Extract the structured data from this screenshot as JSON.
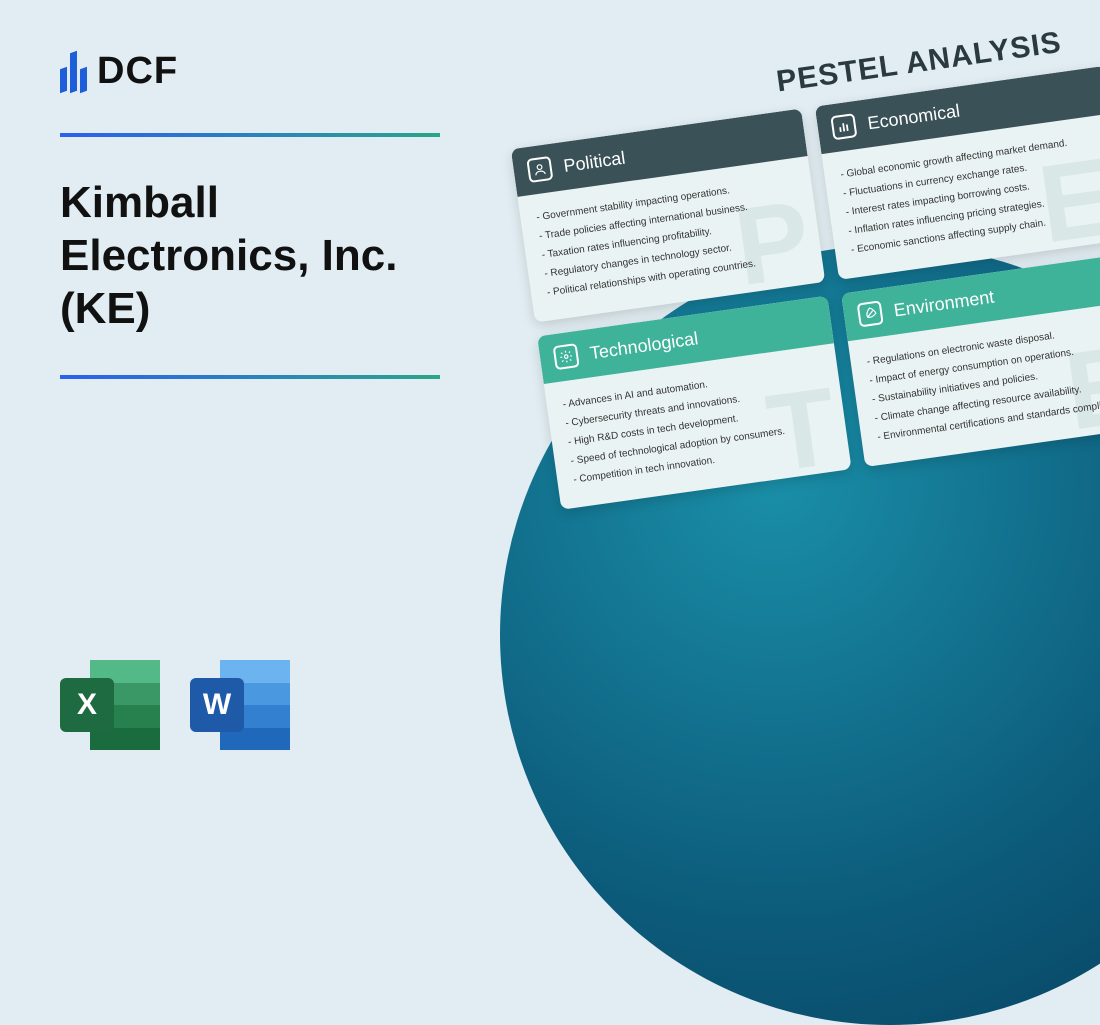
{
  "logo": {
    "text": "DCF"
  },
  "title": "Kimball Electronics, Inc. (KE)",
  "file_icons": {
    "excel": {
      "letter": "X",
      "badge_color": "#1e6b42"
    },
    "word": {
      "letter": "W",
      "badge_color": "#1f5aa8"
    }
  },
  "colors": {
    "background": "#e1edf2",
    "divider_start": "#2b5ff0",
    "divider_end": "#2aa58a",
    "circle_inner": "#1a8fa8",
    "circle_outer": "#083f5c",
    "header_dark": "#3a5257",
    "header_teal": "#3fb39a"
  },
  "pestel": {
    "title": "PESTEL ANALYSIS",
    "cards": [
      {
        "label": "Political",
        "watermark": "P",
        "header_style": "hdr-dark",
        "icon": "person",
        "items": [
          "Government stability impacting operations.",
          "Trade policies affecting international business.",
          "Taxation rates influencing profitability.",
          "Regulatory changes in technology sector.",
          "Political relationships with operating countries."
        ]
      },
      {
        "label": "Economical",
        "watermark": "E",
        "header_style": "hdr-dark",
        "icon": "bars",
        "items": [
          "Global economic growth affecting market demand.",
          "Fluctuations in currency exchange rates.",
          "Interest rates impacting borrowing costs.",
          "Inflation rates influencing pricing strategies.",
          "Economic sanctions affecting supply chain."
        ]
      },
      {
        "label": "Technological",
        "watermark": "T",
        "header_style": "hdr-teal",
        "icon": "gear",
        "items": [
          "Advances in AI and automation.",
          "Cybersecurity threats and innovations.",
          "High R&D costs in tech development.",
          "Speed of technological adoption by consumers.",
          "Competition in tech innovation."
        ]
      },
      {
        "label": "Environment",
        "watermark": "E",
        "header_style": "hdr-teal",
        "icon": "leaf",
        "items": [
          "Regulations on electronic waste disposal.",
          "Impact of energy consumption on operations.",
          "Sustainability initiatives and policies.",
          "Climate change affecting resource availability.",
          "Environmental certifications and standards compliance."
        ]
      }
    ]
  }
}
